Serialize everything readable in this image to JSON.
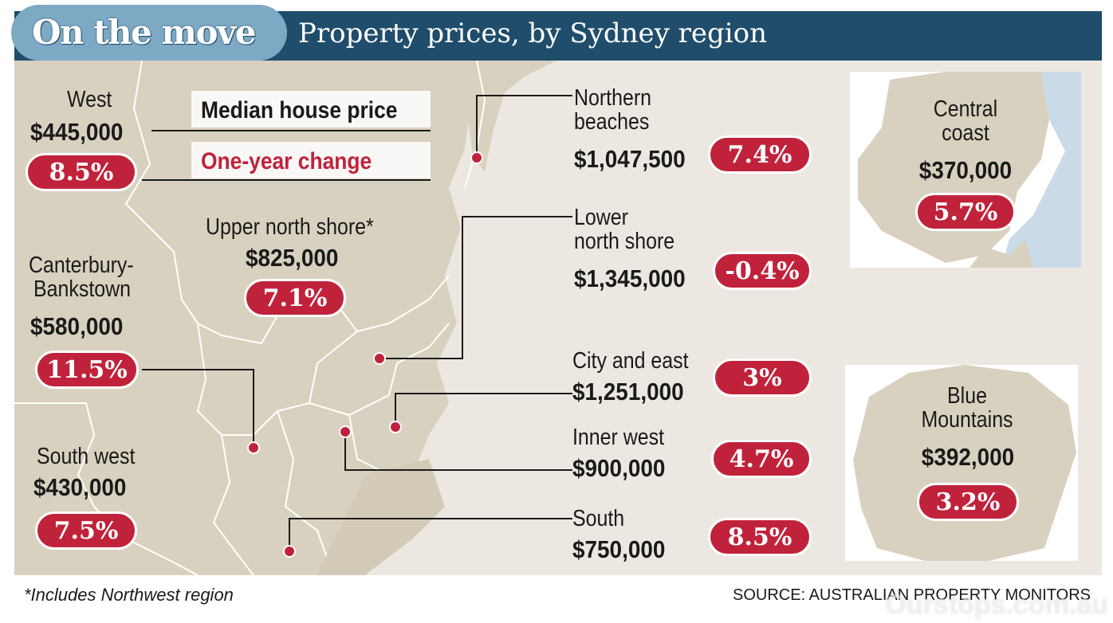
{
  "header": {
    "title": "On the move",
    "subtitle": "Property prices, by Sydney region"
  },
  "legend": {
    "median_label": "Median house price",
    "change_label": "One-year change"
  },
  "regions": {
    "west": {
      "name": "West",
      "price": "$445,000",
      "change": "8.5%"
    },
    "canterbury": {
      "name_line1": "Canterbury-",
      "name_line2": "Bankstown",
      "price": "$580,000",
      "change": "11.5%"
    },
    "south_west": {
      "name": "South west",
      "price": "$430,000",
      "change": "7.5%"
    },
    "upper_north_shore": {
      "name": "Upper north shore*",
      "price": "$825,000",
      "change": "7.1%"
    },
    "northern_beaches": {
      "name_line1": "Northern",
      "name_line2": "beaches",
      "price": "$1,047,500",
      "change": "7.4%"
    },
    "lower_north_shore": {
      "name_line1": "Lower",
      "name_line2": "north shore",
      "price": "$1,345,000",
      "change": "-0.4%"
    },
    "city_east": {
      "name": "City and east",
      "price": "$1,251,000",
      "change": "3%"
    },
    "inner_west": {
      "name": "Inner west",
      "price": "$900,000",
      "change": "4.7%"
    },
    "south": {
      "name": "South",
      "price": "$750,000",
      "change": "8.5%"
    },
    "central_coast": {
      "name_line1": "Central",
      "name_line2": "coast",
      "price": "$370,000",
      "change": "5.7%"
    },
    "blue_mountains": {
      "name_line1": "Blue",
      "name_line2": "Mountains",
      "price": "$392,000",
      "change": "3.2%"
    }
  },
  "footnote": "*Includes Northwest region",
  "source": "SOURCE: AUSTRALIAN PROPERTY MONITORS",
  "watermark": "Ourstops.com.au",
  "colors": {
    "header_bg": "#1f4d6b",
    "header_pill": "#7ea9c4",
    "map_bg": "#ece8e1",
    "land": "#d9d1c0",
    "water": "#c9dbe8",
    "accent_red": "#c1223b",
    "border_line": "#ffffff"
  }
}
